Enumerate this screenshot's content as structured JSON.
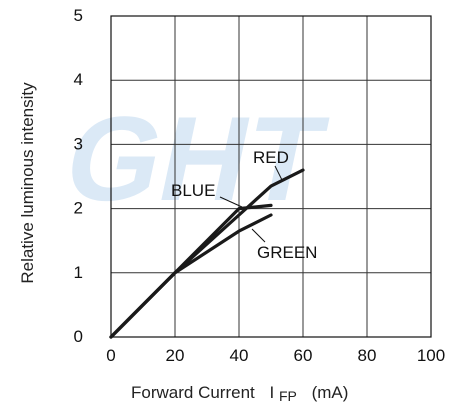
{
  "chart_data": {
    "type": "line",
    "xlabel_text": "Forward Current",
    "xlabel_symbol": "I",
    "xlabel_subscript": "FP",
    "xlabel_unit": "(mA)",
    "ylabel": "Relative luminous intensity",
    "xlim": [
      0,
      100
    ],
    "ylim": [
      0,
      5
    ],
    "x_ticks": [
      "0",
      "20",
      "40",
      "60",
      "80",
      "100"
    ],
    "y_ticks": [
      "0",
      "1",
      "2",
      "3",
      "4",
      "5"
    ],
    "grid": true,
    "series": [
      {
        "name": "RED",
        "points": [
          [
            0,
            0
          ],
          [
            20,
            1.0
          ],
          [
            40,
            1.9
          ],
          [
            50,
            2.35
          ],
          [
            60,
            2.6
          ]
        ]
      },
      {
        "name": "BLUE",
        "points": [
          [
            0,
            0
          ],
          [
            20,
            1.0
          ],
          [
            40,
            2.0
          ],
          [
            50,
            2.05
          ]
        ]
      },
      {
        "name": "GREEN",
        "points": [
          [
            0,
            0
          ],
          [
            20,
            1.0
          ],
          [
            40,
            1.65
          ],
          [
            50,
            1.9
          ]
        ]
      }
    ],
    "line_color": "#1a1a1a",
    "watermark_text": "GHT",
    "watermark_color": "#dbe9f6"
  }
}
